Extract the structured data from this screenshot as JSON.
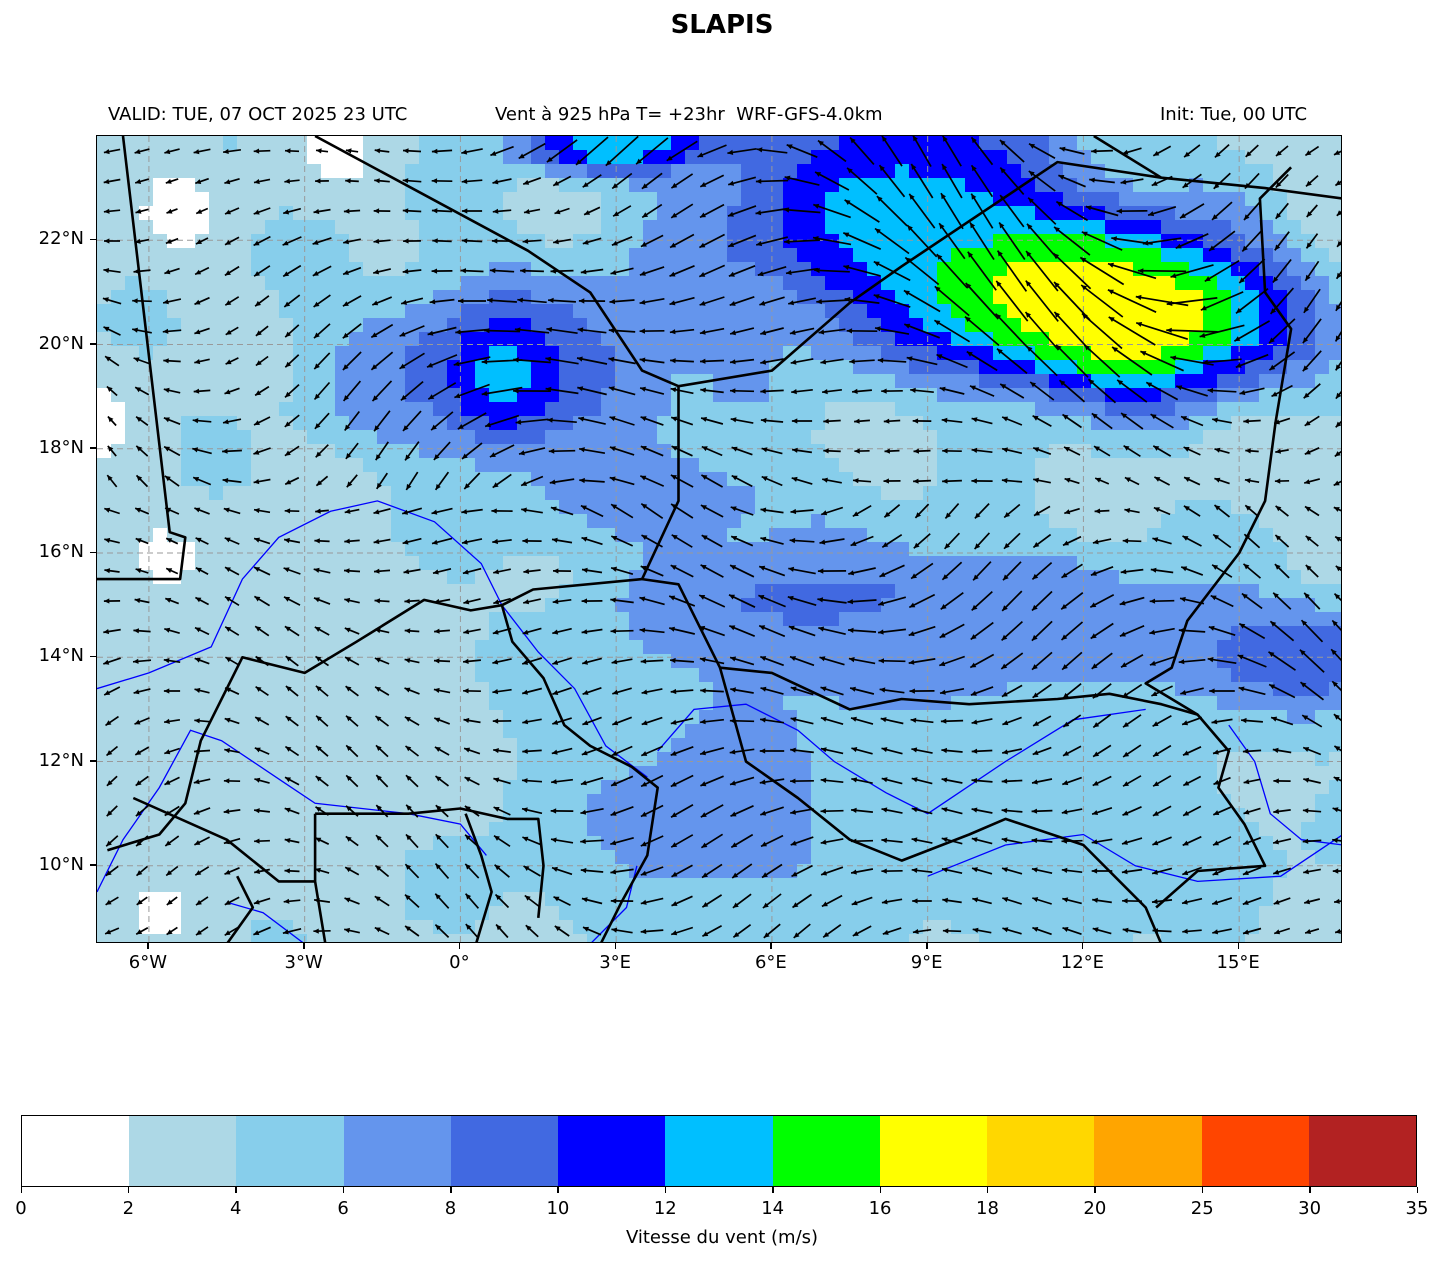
{
  "title": "SLAPIS",
  "subtitle": {
    "valid": "VALID: TUE, 07 OCT 2025 23 UTC",
    "center": "Vent à 925 hPa T= +23hr  WRF-GFS-4.0km",
    "init": "Init: Tue, 00 UTC"
  },
  "map": {
    "lon_range": [
      -7,
      17
    ],
    "lat_range": [
      8.5,
      24
    ],
    "y_ticks": [
      {
        "value": 22,
        "label": "22°N"
      },
      {
        "value": 20,
        "label": "20°N"
      },
      {
        "value": 18,
        "label": "18°N"
      },
      {
        "value": 16,
        "label": "16°N"
      },
      {
        "value": 14,
        "label": "14°N"
      },
      {
        "value": 12,
        "label": "12°N"
      },
      {
        "value": 10,
        "label": "10°N"
      }
    ],
    "x_ticks": [
      {
        "value": -6,
        "label": "6°W"
      },
      {
        "value": -3,
        "label": "3°W"
      },
      {
        "value": 0,
        "label": "0°"
      },
      {
        "value": 3,
        "label": "3°E"
      },
      {
        "value": 6,
        "label": "6°E"
      },
      {
        "value": 9,
        "label": "9°E"
      },
      {
        "value": 12,
        "label": "12°E"
      },
      {
        "value": 15,
        "label": "15°E"
      }
    ],
    "gridlines": true,
    "wind_speed_regions": [
      {
        "lon": 8.5,
        "lat": 22.5,
        "speed": 13,
        "extent_lon": 4,
        "extent_lat": 2.5
      },
      {
        "lon": 13,
        "lat": 20.5,
        "speed": 19,
        "extent_lon": 3,
        "extent_lat": 1.5
      },
      {
        "lon": 11.5,
        "lat": 21,
        "speed": 17,
        "extent_lon": 2.5,
        "extent_lat": 1.2
      },
      {
        "lon": 1,
        "lat": 19.5,
        "speed": 10,
        "extent_lon": 3.5,
        "extent_lat": 2
      },
      {
        "lon": 0.8,
        "lat": 19.3,
        "speed": 13,
        "extent_lon": 0.8,
        "extent_lat": 1
      },
      {
        "lon": 3,
        "lat": 23.8,
        "speed": 14,
        "extent_lon": 2,
        "extent_lat": 0.5
      },
      {
        "lon": 7,
        "lat": 15,
        "speed": 10,
        "extent_lon": 3.5,
        "extent_lat": 1
      },
      {
        "lon": 16,
        "lat": 14,
        "speed": 11,
        "extent_lon": 2.5,
        "extent_lat": 1
      },
      {
        "lon": 10,
        "lat": 14.5,
        "speed": 8,
        "extent_lon": 6,
        "extent_lat": 1.8
      },
      {
        "lon": 5,
        "lat": 11,
        "speed": 7,
        "extent_lon": 5,
        "extent_lat": 3
      },
      {
        "lon": 12,
        "lat": 10.5,
        "speed": 5,
        "extent_lon": 5,
        "extent_lat": 2.5
      },
      {
        "lon": -3,
        "lat": 12.5,
        "speed": 3,
        "extent_lon": 4,
        "extent_lat": 3
      },
      {
        "lon": 4,
        "lat": 17,
        "speed": 7,
        "extent_lon": 3,
        "extent_lat": 1.2
      }
    ],
    "background_speed": 3,
    "boundary_color": "#000000",
    "river_color": "#0000ff"
  },
  "colorbar": {
    "levels": [
      "0",
      "2",
      "4",
      "6",
      "8",
      "10",
      "12",
      "14",
      "16",
      "18",
      "20",
      "25",
      "30",
      "35"
    ],
    "colors": [
      "#ffffff",
      "#add8e6",
      "#87ceeb",
      "#6495ed",
      "#4169e1",
      "#0000ff",
      "#00bfff",
      "#00ff00",
      "#ffff00",
      "#ffd700",
      "#ffa500",
      "#ff4500",
      "#b22222"
    ],
    "label": "Vitesse du vent (m/s)"
  }
}
